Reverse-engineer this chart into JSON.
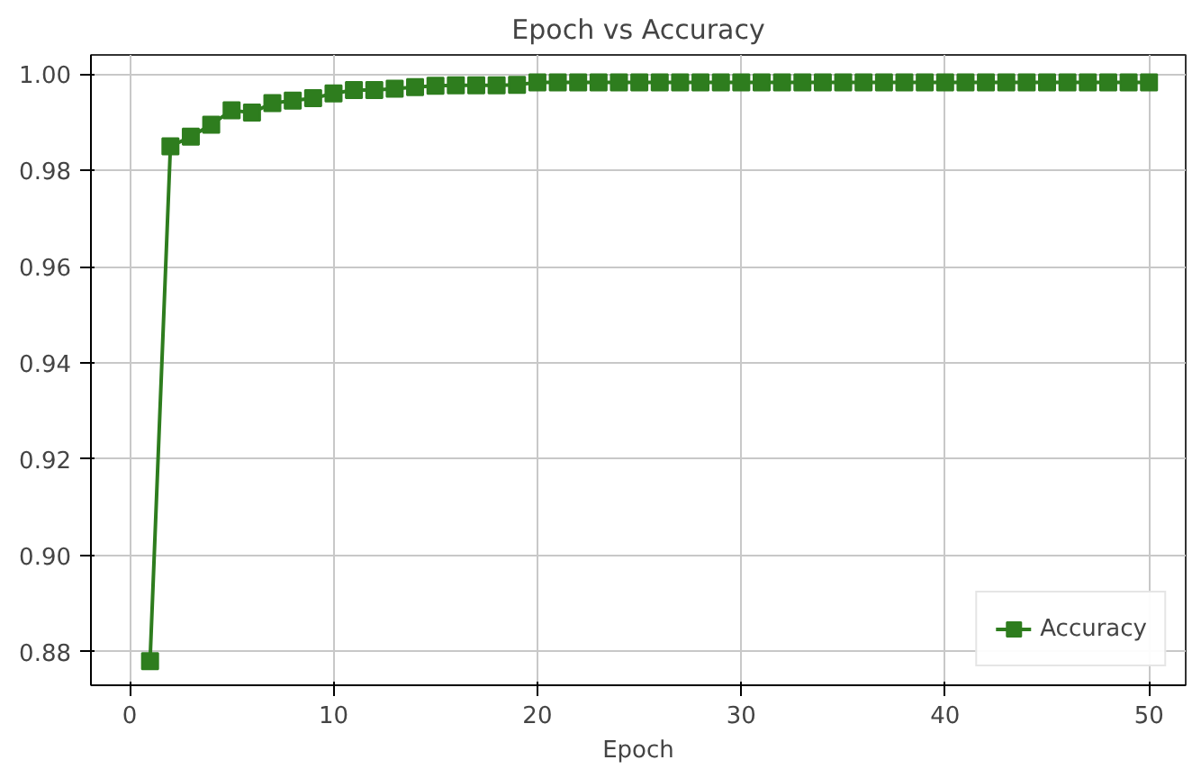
{
  "chart_data": {
    "type": "line",
    "title": "Epoch vs Accuracy",
    "xlabel": "Epoch",
    "x": [
      1,
      2,
      3,
      4,
      5,
      6,
      7,
      8,
      9,
      10,
      11,
      12,
      13,
      14,
      15,
      16,
      17,
      18,
      19,
      20,
      21,
      22,
      23,
      24,
      25,
      26,
      27,
      28,
      29,
      30,
      31,
      32,
      33,
      34,
      35,
      36,
      37,
      38,
      39,
      40,
      41,
      42,
      43,
      44,
      45,
      46,
      47,
      48,
      49,
      50
    ],
    "series": [
      {
        "name": "Accuracy",
        "color": "#2e7d1e",
        "values": [
          0.878,
          0.985,
          0.987,
          0.9895,
          0.9925,
          0.992,
          0.994,
          0.9945,
          0.995,
          0.996,
          0.9967,
          0.9967,
          0.997,
          0.9973,
          0.9976,
          0.9977,
          0.9977,
          0.9977,
          0.9978,
          0.9983,
          0.9983,
          0.9983,
          0.9983,
          0.9983,
          0.9983,
          0.9983,
          0.9983,
          0.9983,
          0.9983,
          0.9983,
          0.9983,
          0.9983,
          0.9983,
          0.9983,
          0.9983,
          0.9983,
          0.9983,
          0.9983,
          0.9983,
          0.9983,
          0.9983,
          0.9983,
          0.9983,
          0.9983,
          0.9983,
          0.9983,
          0.9983,
          0.9983,
          0.9983,
          0.9983
        ]
      }
    ],
    "xlim": [
      -1.9,
      51.8
    ],
    "ylim": [
      0.873,
      1.004
    ],
    "xticks": [
      0,
      10,
      20,
      30,
      40,
      50
    ],
    "yticks": [
      {
        "value": 0.88,
        "label": "0.88"
      },
      {
        "value": 0.9,
        "label": "0.90"
      },
      {
        "value": 0.92,
        "label": "0.92"
      },
      {
        "value": 0.94,
        "label": "0.94"
      },
      {
        "value": 0.96,
        "label": "0.96"
      },
      {
        "value": 0.98,
        "label": "0.98"
      },
      {
        "value": 1.0,
        "label": "1.00"
      }
    ],
    "grid": true,
    "legend": "bottom right",
    "marker": "square",
    "line_style": "solid"
  }
}
